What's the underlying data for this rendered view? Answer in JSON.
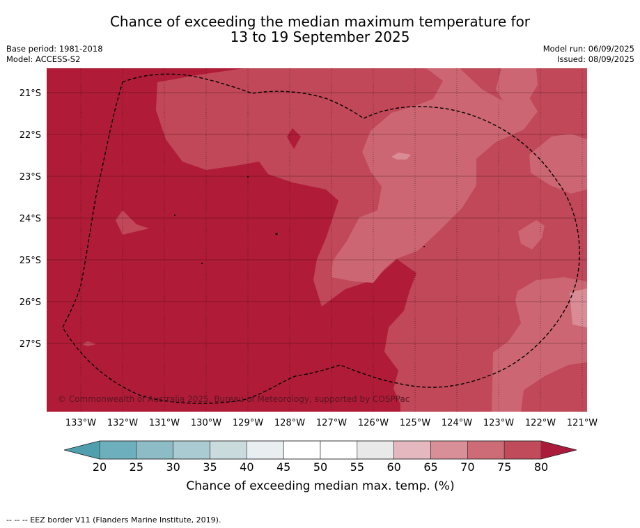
{
  "header": {
    "title_line1": "Chance of exceeding the median maximum temperature for",
    "title_line2": "13 to 19 September 2025",
    "base_period": "Base period: 1981-2018",
    "model": "Model: ACCESS-S2",
    "model_run": "Model run: 06/09/2025",
    "issued": "Issued: 08/09/2025"
  },
  "map": {
    "lat_labels": [
      "21°S",
      "22°S",
      "23°S",
      "24°S",
      "25°S",
      "26°S",
      "27°S"
    ],
    "lon_labels": [
      "133°W",
      "132°W",
      "131°W",
      "130°W",
      "129°W",
      "128°W",
      "127°W",
      "126°W",
      "125°W",
      "124°W",
      "123°W",
      "122°W",
      "121°W"
    ],
    "copyright": "© Commonwealth of Australia 2025, Bureau of Meteorology, supported by COSPPac",
    "colors": {
      "c80plus": "#b01c38",
      "c75_80": "#c04858",
      "c70_75": "#cc6672",
      "c65_70": "#d98c95",
      "border": "#000000"
    }
  },
  "colorbar": {
    "ticks": [
      "20",
      "25",
      "30",
      "35",
      "40",
      "45",
      "50",
      "55",
      "60",
      "65",
      "70",
      "75",
      "80"
    ],
    "label": "Chance of exceeding median max. temp. (%)",
    "low_arrow_color": "#4f9fae",
    "colors": [
      "#6eafbd",
      "#8dbcc7",
      "#a9cbd1",
      "#cadbde",
      "#e9eff1",
      "#ffffff",
      "#ffffff",
      "#e9e9e9",
      "#e4b8be",
      "#d98f98",
      "#cd6b77",
      "#c04c5b"
    ],
    "high_arrow_color": "#aa1a3a"
  },
  "footer": {
    "legend_note": "--  --  -- EEZ border V11 (Flanders Marine Institute, 2019)."
  }
}
